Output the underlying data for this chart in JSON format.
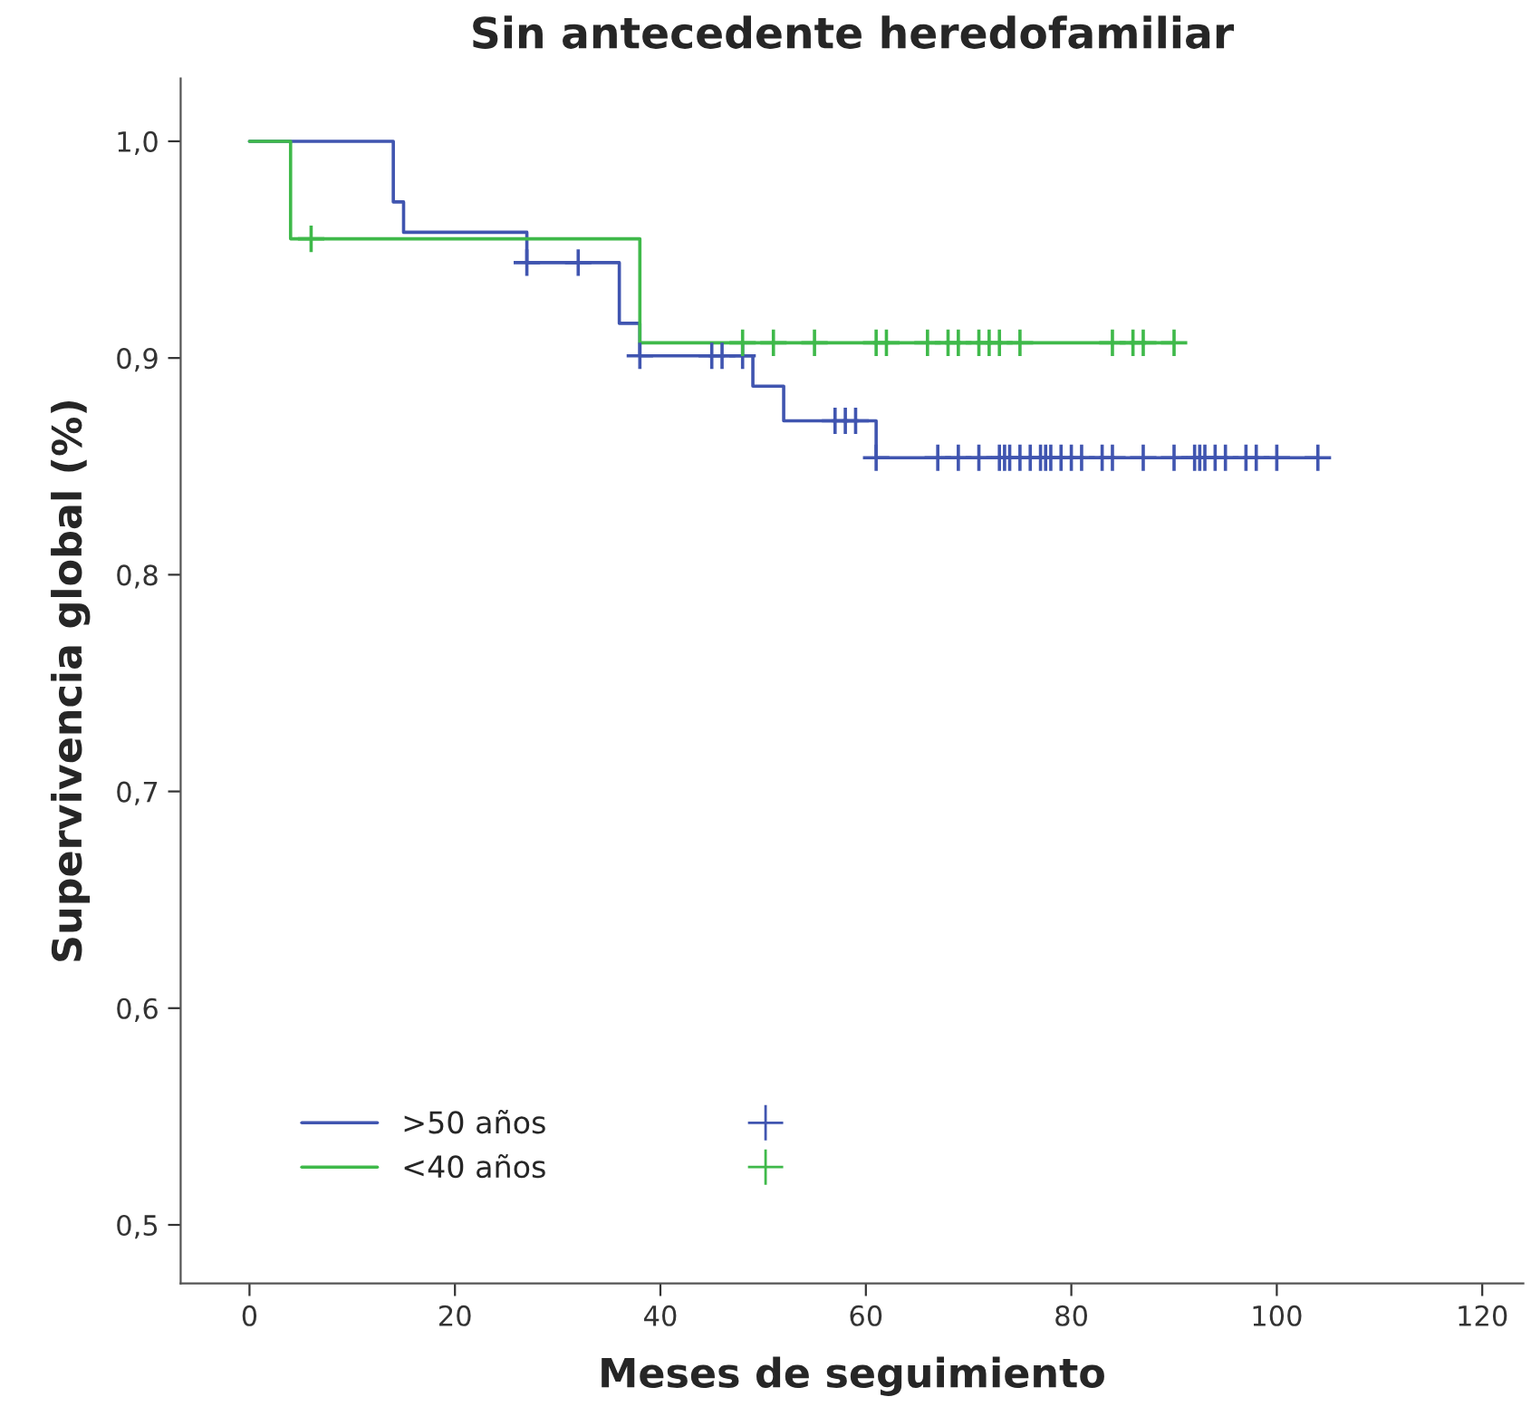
{
  "chart_data": {
    "type": "step",
    "title": "Sin antecedente heredofamiliar",
    "xlabel": "Meses de seguimiento",
    "ylabel": "Supervivencia global (%)",
    "xlim": [
      -6.7,
      124
    ],
    "ylim": [
      0.473,
      1.029
    ],
    "xticks": [
      0,
      20,
      40,
      60,
      80,
      100,
      120
    ],
    "yticks": [
      {
        "value": 0.5,
        "label": "0,5"
      },
      {
        "value": 0.6,
        "label": "0,6"
      },
      {
        "value": 0.7,
        "label": "0,7"
      },
      {
        "value": 0.8,
        "label": "0,8"
      },
      {
        "value": 0.9,
        "label": "0,9"
      },
      {
        "value": 1.0,
        "label": "1,0"
      }
    ],
    "grid": false,
    "legend": "bottom left",
    "series": [
      {
        "name": ">50 años",
        "color": "#4055b0",
        "x": [
          0,
          14,
          15,
          27,
          36,
          38,
          49,
          52,
          61,
          104
        ],
        "values": [
          1.0,
          0.972,
          0.958,
          0.944,
          0.916,
          0.901,
          0.887,
          0.871,
          0.854,
          0.854
        ]
      },
      {
        "name": "<40 años",
        "color": "#3fb94a",
        "x": [
          0,
          4,
          38,
          90
        ],
        "values": [
          1.0,
          0.955,
          0.907,
          0.907
        ]
      },
      {
        "color": "#4055b0",
        "type": "scatter",
        "marker": "cross",
        "x": [
          27,
          32,
          38,
          45,
          46,
          48,
          57,
          58,
          59,
          61,
          67,
          69,
          71,
          73,
          73.5,
          74,
          75,
          76,
          77,
          77.5,
          78,
          79,
          80,
          81,
          83,
          84,
          87,
          90,
          92,
          92.5,
          93,
          94,
          95,
          97,
          98,
          100,
          104
        ],
        "values": [
          0.944,
          0.944,
          0.901,
          0.901,
          0.901,
          0.901,
          0.871,
          0.871,
          0.871,
          0.854,
          0.854,
          0.854,
          0.854,
          0.854,
          0.854,
          0.854,
          0.854,
          0.854,
          0.854,
          0.854,
          0.854,
          0.854,
          0.854,
          0.854,
          0.854,
          0.854,
          0.854,
          0.854,
          0.854,
          0.854,
          0.854,
          0.854,
          0.854,
          0.854,
          0.854,
          0.854,
          0.854
        ]
      },
      {
        "color": "#3fb94a",
        "type": "scatter",
        "marker": "cross",
        "x": [
          6,
          48,
          51,
          55,
          61,
          62,
          66,
          68,
          69,
          71,
          72,
          73,
          75,
          84,
          86,
          87,
          90
        ],
        "values": [
          0.955,
          0.907,
          0.907,
          0.907,
          0.907,
          0.907,
          0.907,
          0.907,
          0.907,
          0.907,
          0.907,
          0.907,
          0.907,
          0.907,
          0.907,
          0.907,
          0.907
        ]
      }
    ]
  }
}
